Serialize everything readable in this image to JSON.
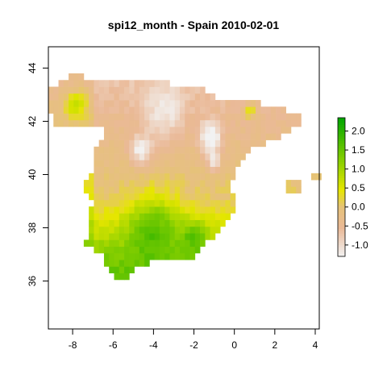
{
  "title": "spi12_month - Spain 2010-02-01",
  "chart_data": {
    "type": "heatmap",
    "title": "spi12_month - Spain 2010-02-01",
    "xlabel": "",
    "ylabel": "",
    "xlim": [
      -9.2,
      4.2
    ],
    "ylim": [
      34.2,
      44.8
    ],
    "x_ticks": [
      -8,
      -6,
      -4,
      -2,
      0,
      2,
      4
    ],
    "y_ticks": [
      36,
      38,
      40,
      42,
      44
    ],
    "x_tick_labels": [
      "-8",
      "-6",
      "-4",
      "-2",
      "0",
      "2",
      "4"
    ],
    "y_tick_labels": [
      "36",
      "38",
      "40",
      "42",
      "44"
    ],
    "legend": {
      "position": "right",
      "range": [
        -1.3,
        2.35
      ],
      "ticks": [
        2.0,
        1.5,
        1.0,
        0.5,
        0.0,
        -0.5,
        -1.0
      ],
      "tick_labels": [
        "2.0",
        "1.5",
        "1.0",
        "0.5",
        "0.0",
        "-0.5",
        "-1.0"
      ],
      "colors": [
        "#f2f2f2",
        "#eab997",
        "#e6c27a",
        "#e6e600",
        "#8bd000",
        "#00a600"
      ]
    },
    "cell_size_degrees": 0.25,
    "value_field": {
      "dry_cores": [
        {
          "lon": -1.2,
          "lat": 41.4,
          "value": -1.25,
          "spread": 0.55
        },
        {
          "lon": -4.6,
          "lat": 40.9,
          "value": -1.05,
          "spread": 0.55
        },
        {
          "lon": -3.5,
          "lat": 42.3,
          "value": -0.7,
          "spread": 1.0
        },
        {
          "lon": -1.0,
          "lat": 40.5,
          "value": -1.0,
          "spread": 0.35
        }
      ],
      "wet_cores": [
        {
          "lon": -4.0,
          "lat": 37.8,
          "value": 1.9,
          "spread": 1.3
        },
        {
          "lon": -2.0,
          "lat": 37.6,
          "value": 1.9,
          "spread": 0.6
        },
        {
          "lon": -6.3,
          "lat": 36.8,
          "value": 1.5,
          "spread": 0.5
        },
        {
          "lon": -7.8,
          "lat": 42.6,
          "value": 0.9,
          "spread": 0.6
        },
        {
          "lon": 0.8,
          "lat": 42.4,
          "value": 0.8,
          "spread": 0.3
        }
      ]
    }
  }
}
